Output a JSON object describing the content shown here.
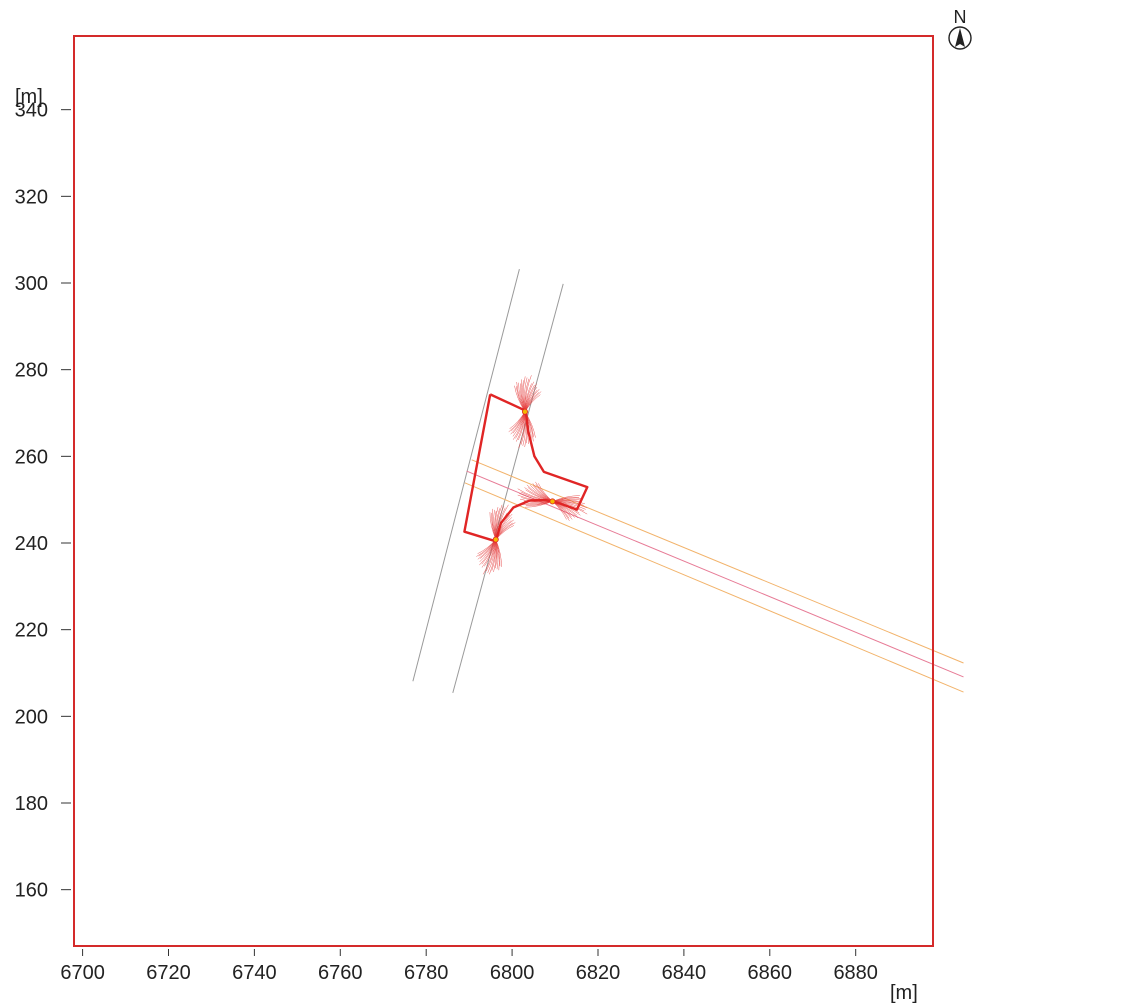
{
  "chart_data": {
    "type": "diagram",
    "x_unit": "[m]",
    "y_unit": "[m]",
    "north_label": "N",
    "xlim": [
      6698,
      6898
    ],
    "ylim": [
      147,
      357
    ],
    "x_ticks": [
      {
        "value": 6700,
        "label": "6700"
      },
      {
        "value": 6720,
        "label": "6720"
      },
      {
        "value": 6740,
        "label": "6740"
      },
      {
        "value": 6760,
        "label": "6760"
      },
      {
        "value": 6780,
        "label": "6780"
      },
      {
        "value": 6800,
        "label": "6800"
      },
      {
        "value": 6820,
        "label": "6820"
      },
      {
        "value": 6840,
        "label": "6840"
      },
      {
        "value": 6860,
        "label": "6860"
      },
      {
        "value": 6880,
        "label": "6880"
      }
    ],
    "y_ticks": [
      {
        "value": 160,
        "label": "160"
      },
      {
        "value": 180,
        "label": "180"
      },
      {
        "value": 200,
        "label": "200"
      },
      {
        "value": 220,
        "label": "220"
      },
      {
        "value": 240,
        "label": "240"
      },
      {
        "value": 260,
        "label": "260"
      },
      {
        "value": 280,
        "label": "280"
      },
      {
        "value": 300,
        "label": "300"
      },
      {
        "value": 320,
        "label": "320"
      },
      {
        "value": 340,
        "label": "340"
      }
    ],
    "colors": {
      "frame": "#d42a2a",
      "grey_road": "#9a9a9a",
      "orange_road": "#f2b36b",
      "pink_road": "#e77b96",
      "junction": "#e02525",
      "fan": "#e43a3a",
      "source": "#f5b800"
    },
    "grey_road_lines": [
      [
        [
          6776.9,
          208.1
        ],
        [
          6801.7,
          303.2
        ]
      ],
      [
        [
          6786.2,
          205.4
        ],
        [
          6811.9,
          299.8
        ]
      ]
    ],
    "main_road_lines": [
      {
        "color": "orange",
        "points": [
          [
            6790.6,
            259.2
          ],
          [
            6905.1,
            212.3
          ]
        ]
      },
      {
        "color": "pink",
        "points": [
          [
            6789.4,
            256.6
          ],
          [
            6905.1,
            209.1
          ]
        ]
      },
      {
        "color": "orange",
        "points": [
          [
            6789.0,
            253.9
          ],
          [
            6905.1,
            205.6
          ]
        ]
      }
    ],
    "junction_outline": [
      [
        6794.9,
        274.3
      ],
      [
        6803.2,
        270.5
      ],
      [
        6803.7,
        266.0
      ],
      [
        6805.2,
        260.0
      ],
      [
        6807.4,
        256.4
      ],
      [
        6817.5,
        252.9
      ],
      [
        6815.1,
        247.7
      ],
      [
        6810.9,
        249.2
      ],
      [
        6807.8,
        249.9
      ],
      [
        6804.1,
        249.8
      ],
      [
        6800.3,
        248.2
      ],
      [
        6797.4,
        244.6
      ],
      [
        6796.2,
        240.4
      ],
      [
        6788.9,
        242.6
      ],
      [
        6794.9,
        274.3
      ]
    ],
    "sources": [
      {
        "x": 6803.0,
        "y": 270.3,
        "fan_angles": [
          80,
          260
        ]
      },
      {
        "x": 6809.4,
        "y": 249.6,
        "fan_angles": [
          160,
          340
        ]
      },
      {
        "x": 6796.2,
        "y": 240.8,
        "fan_angles": [
          70,
          250
        ]
      }
    ]
  }
}
